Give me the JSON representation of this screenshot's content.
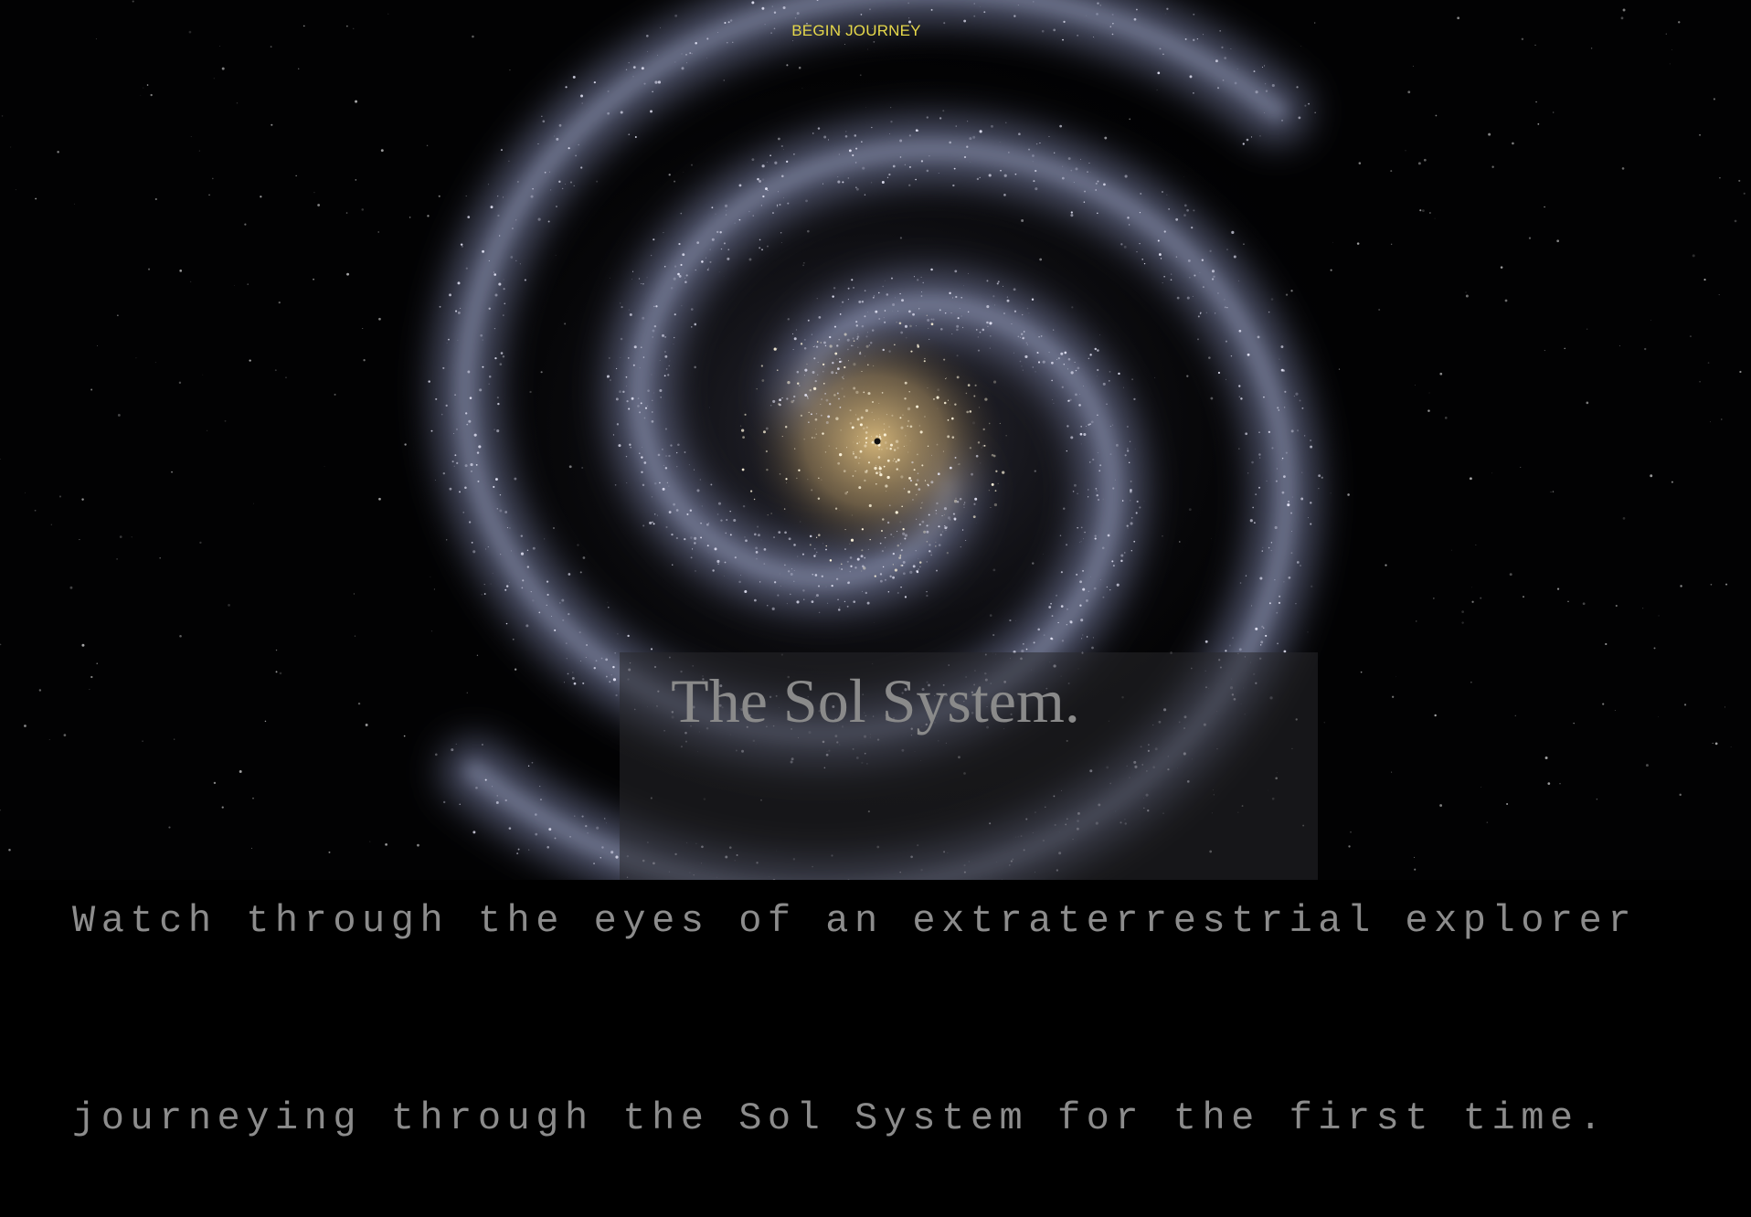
{
  "nav": {
    "button": "BEGIN JOURNEY"
  },
  "hero": {
    "title": "The Sol System.",
    "lines": [
      "Watch through the eyes of an extraterrestrial explorer",
      "journeying through the Sol System for the first time."
    ]
  }
}
